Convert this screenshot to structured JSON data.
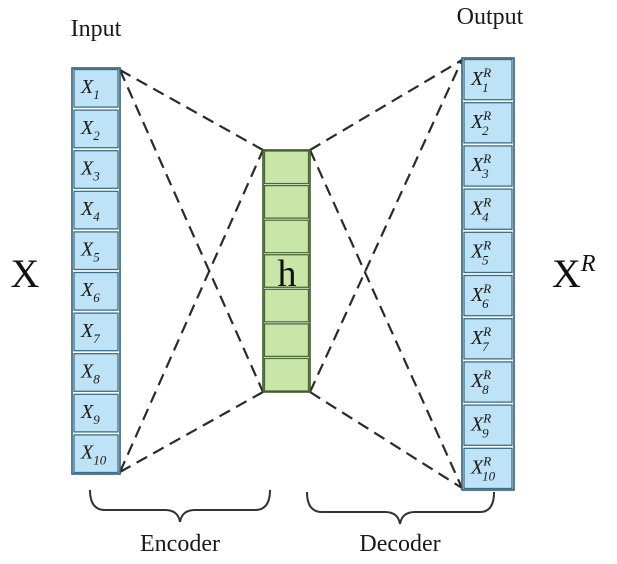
{
  "labels": {
    "input": "Input",
    "output": "Output",
    "encoder": "Encoder",
    "decoder": "Decoder",
    "hidden": "h",
    "x_big": "X",
    "xr_big_base": "X",
    "xr_big_sup": "R"
  },
  "input_cells": [
    {
      "base": "X",
      "sub": "1"
    },
    {
      "base": "X",
      "sub": "2"
    },
    {
      "base": "X",
      "sub": "3"
    },
    {
      "base": "X",
      "sub": "4"
    },
    {
      "base": "X",
      "sub": "5"
    },
    {
      "base": "X",
      "sub": "6"
    },
    {
      "base": "X",
      "sub": "7"
    },
    {
      "base": "X",
      "sub": "8"
    },
    {
      "base": "X",
      "sub": "9"
    },
    {
      "base": "X",
      "sub": "10"
    }
  ],
  "output_cells": [
    {
      "base": "X",
      "sup": "R",
      "sub": "1"
    },
    {
      "base": "X",
      "sup": "R",
      "sub": "2"
    },
    {
      "base": "X",
      "sup": "R",
      "sub": "3"
    },
    {
      "base": "X",
      "sup": "R",
      "sub": "4"
    },
    {
      "base": "X",
      "sup": "R",
      "sub": "5"
    },
    {
      "base": "X",
      "sup": "R",
      "sub": "6"
    },
    {
      "base": "X",
      "sup": "R",
      "sub": "7"
    },
    {
      "base": "X",
      "sup": "R",
      "sub": "8"
    },
    {
      "base": "X",
      "sup": "R",
      "sub": "9"
    },
    {
      "base": "X",
      "sup": "R",
      "sub": "10"
    }
  ],
  "hidden_cell_count": 7,
  "colors": {
    "input_fill": "#bfe3f6",
    "output_fill": "#bfe3f6",
    "hidden_fill": "#c8e6a8"
  }
}
